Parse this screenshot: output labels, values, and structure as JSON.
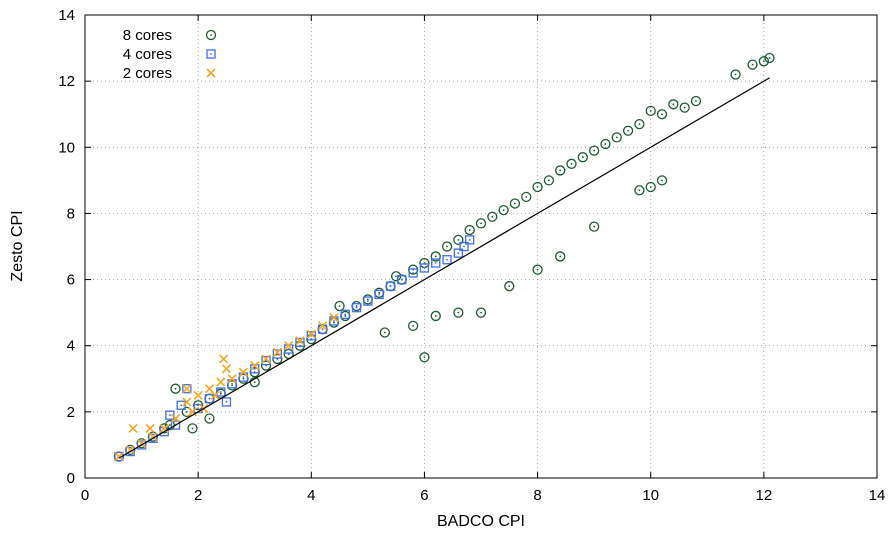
{
  "chart_data": {
    "type": "scatter",
    "title": "",
    "xlabel": "BADCO CPI",
    "ylabel": "Zesto CPI",
    "xlim": [
      0,
      14
    ],
    "ylim": [
      0,
      14
    ],
    "x_ticks": [
      0,
      2,
      4,
      6,
      8,
      10,
      12,
      14
    ],
    "y_ticks": [
      0,
      2,
      4,
      6,
      8,
      10,
      12,
      14
    ],
    "grid": true,
    "legend_position": "top-left",
    "reference_line": {
      "x": [
        0.6,
        12.1
      ],
      "y": [
        0.6,
        12.1
      ],
      "color": "#000000"
    },
    "series": [
      {
        "name": "8 cores",
        "marker": "circle-dot",
        "color": "#1a5c2e",
        "points": [
          [
            0.6,
            0.65
          ],
          [
            0.8,
            0.85
          ],
          [
            1.0,
            1.05
          ],
          [
            1.2,
            1.25
          ],
          [
            1.4,
            1.5
          ],
          [
            1.5,
            1.6
          ],
          [
            1.6,
            2.7
          ],
          [
            1.8,
            2.0
          ],
          [
            2.0,
            2.2
          ],
          [
            2.2,
            2.4
          ],
          [
            2.4,
            2.55
          ],
          [
            2.6,
            2.8
          ],
          [
            2.8,
            3.0
          ],
          [
            3.0,
            3.2
          ],
          [
            3.2,
            3.4
          ],
          [
            3.4,
            3.6
          ],
          [
            3.6,
            3.75
          ],
          [
            3.8,
            4.0
          ],
          [
            4.0,
            4.2
          ],
          [
            4.2,
            4.5
          ],
          [
            4.4,
            4.7
          ],
          [
            4.5,
            5.2
          ],
          [
            4.6,
            4.9
          ],
          [
            4.8,
            5.2
          ],
          [
            5.0,
            5.4
          ],
          [
            5.2,
            5.6
          ],
          [
            5.4,
            5.8
          ],
          [
            5.5,
            6.1
          ],
          [
            5.6,
            6.0
          ],
          [
            5.8,
            6.3
          ],
          [
            6.0,
            6.5
          ],
          [
            6.2,
            6.7
          ],
          [
            6.4,
            7.0
          ],
          [
            6.6,
            7.2
          ],
          [
            6.8,
            7.5
          ],
          [
            7.0,
            7.7
          ],
          [
            7.2,
            7.9
          ],
          [
            7.4,
            8.1
          ],
          [
            7.6,
            8.3
          ],
          [
            7.8,
            8.5
          ],
          [
            8.0,
            8.8
          ],
          [
            8.2,
            9.0
          ],
          [
            8.4,
            9.3
          ],
          [
            8.6,
            9.5
          ],
          [
            8.8,
            9.7
          ],
          [
            9.0,
            9.9
          ],
          [
            9.2,
            10.1
          ],
          [
            9.4,
            10.3
          ],
          [
            9.6,
            10.5
          ],
          [
            9.8,
            10.7
          ],
          [
            10.0,
            11.1
          ],
          [
            10.2,
            11.0
          ],
          [
            10.4,
            11.3
          ],
          [
            10.6,
            11.2
          ],
          [
            10.8,
            11.4
          ],
          [
            11.5,
            12.2
          ],
          [
            11.8,
            12.5
          ],
          [
            12.0,
            12.6
          ],
          [
            12.1,
            12.7
          ],
          [
            6.0,
            3.65
          ],
          [
            6.6,
            5.0
          ],
          [
            7.0,
            5.0
          ],
          [
            7.5,
            5.8
          ],
          [
            8.0,
            6.3
          ],
          [
            8.4,
            6.7
          ],
          [
            9.0,
            7.6
          ],
          [
            9.8,
            8.7
          ],
          [
            10.0,
            8.8
          ],
          [
            10.2,
            9.0
          ],
          [
            5.3,
            4.4
          ],
          [
            5.8,
            4.6
          ],
          [
            6.2,
            4.9
          ],
          [
            3.0,
            2.9
          ],
          [
            2.2,
            1.8
          ],
          [
            1.9,
            1.5
          ]
        ]
      },
      {
        "name": "4 cores",
        "marker": "square-dot",
        "color": "#3f6fe8",
        "points": [
          [
            0.6,
            0.65
          ],
          [
            0.8,
            0.8
          ],
          [
            1.0,
            1.0
          ],
          [
            1.2,
            1.2
          ],
          [
            1.4,
            1.4
          ],
          [
            1.6,
            1.6
          ],
          [
            1.8,
            2.7
          ],
          [
            2.0,
            2.1
          ],
          [
            2.2,
            2.4
          ],
          [
            2.4,
            2.6
          ],
          [
            2.6,
            2.85
          ],
          [
            2.8,
            3.05
          ],
          [
            3.0,
            3.3
          ],
          [
            3.2,
            3.55
          ],
          [
            3.4,
            3.75
          ],
          [
            3.6,
            3.9
          ],
          [
            3.8,
            4.1
          ],
          [
            4.0,
            4.3
          ],
          [
            4.2,
            4.5
          ],
          [
            4.4,
            4.75
          ],
          [
            4.6,
            4.95
          ],
          [
            4.8,
            5.15
          ],
          [
            5.0,
            5.35
          ],
          [
            5.2,
            5.55
          ],
          [
            5.4,
            5.8
          ],
          [
            5.6,
            6.0
          ],
          [
            5.8,
            6.2
          ],
          [
            6.0,
            6.35
          ],
          [
            6.2,
            6.5
          ],
          [
            6.4,
            6.6
          ],
          [
            6.6,
            6.8
          ],
          [
            6.8,
            7.2
          ],
          [
            6.7,
            7.0
          ],
          [
            1.5,
            1.9
          ],
          [
            1.7,
            2.2
          ],
          [
            2.5,
            2.3
          ]
        ]
      },
      {
        "name": "2 cores",
        "marker": "cross",
        "color": "#f5a623",
        "points": [
          [
            0.6,
            0.65
          ],
          [
            0.8,
            0.85
          ],
          [
            0.85,
            1.5
          ],
          [
            1.0,
            1.05
          ],
          [
            1.15,
            1.5
          ],
          [
            1.2,
            1.25
          ],
          [
            1.4,
            1.5
          ],
          [
            1.6,
            1.8
          ],
          [
            1.8,
            2.3
          ],
          [
            1.8,
            2.7
          ],
          [
            2.0,
            2.5
          ],
          [
            2.2,
            2.7
          ],
          [
            2.4,
            2.9
          ],
          [
            2.45,
            3.6
          ],
          [
            2.5,
            3.3
          ],
          [
            2.6,
            3.0
          ],
          [
            2.8,
            3.2
          ],
          [
            3.0,
            3.4
          ],
          [
            3.2,
            3.6
          ],
          [
            3.4,
            3.8
          ],
          [
            3.6,
            4.0
          ],
          [
            3.8,
            4.15
          ],
          [
            4.0,
            4.35
          ],
          [
            4.2,
            4.6
          ],
          [
            4.4,
            4.85
          ],
          [
            2.1,
            2.1
          ],
          [
            1.9,
            2.0
          ],
          [
            2.3,
            2.5
          ]
        ]
      }
    ]
  }
}
